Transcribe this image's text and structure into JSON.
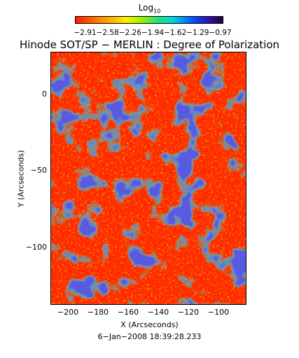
{
  "colorbar": {
    "title": "Log",
    "title_sub": "10",
    "ticks": "−2.91−2.58−2.26−1.94−1.62−1.29−0.97",
    "colors": [
      "#ff1800",
      "#ff6a00",
      "#ffb000",
      "#f8f000",
      "#9ef000",
      "#1ee07a",
      "#00d8d8",
      "#0060ff",
      "#2a18c8",
      "#24003a"
    ]
  },
  "title": "Hinode SOT/SP − MERLIN : Degree of Polarization",
  "x_axis": {
    "label": "X (Arcseconds)",
    "ticks": [
      "−200",
      "−180",
      "−160",
      "−140",
      "−120",
      "−100"
    ]
  },
  "y_axis": {
    "label": "Y (Arcseconds)",
    "ticks": [
      "0",
      "−50",
      "−100"
    ]
  },
  "timestamp": "6−Jan−2008 18:39:28.233"
}
